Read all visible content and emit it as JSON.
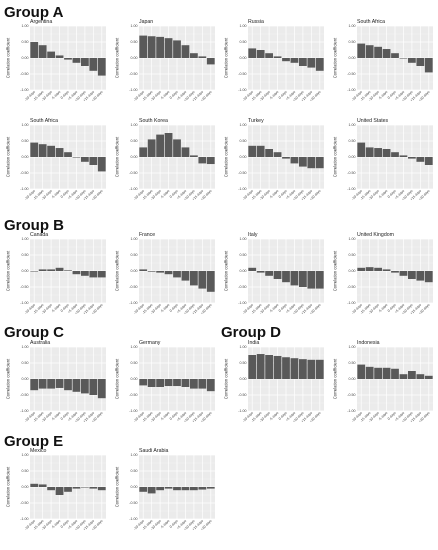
{
  "figure": {
    "groups": [
      {
        "label": "Group A"
      },
      {
        "label": "Group B"
      },
      {
        "label": "Group C"
      },
      {
        "label": "Group D"
      },
      {
        "label": "Group E"
      }
    ]
  },
  "chart_data": [
    {
      "type": "bar",
      "group": "Group A",
      "title": "Argentina",
      "ylabel": "Correlation coefficient",
      "ylim": [
        -1,
        1
      ],
      "categories": [
        "-20 days",
        "-15 days",
        "-10 days",
        "-5 days",
        "0 days",
        "+5 days",
        "+10 days",
        "+15 days",
        "+20 days"
      ],
      "values": [
        0.5,
        0.4,
        0.2,
        0.08,
        -0.05,
        -0.15,
        -0.25,
        -0.4,
        -0.55
      ]
    },
    {
      "type": "bar",
      "group": "Group A",
      "title": "Japan",
      "ylabel": "Correlation coefficient",
      "ylim": [
        -1,
        1
      ],
      "categories": [
        "-20 days",
        "-15 days",
        "-10 days",
        "-5 days",
        "0 days",
        "+5 days",
        "+10 days",
        "+15 days",
        "+20 days"
      ],
      "values": [
        0.7,
        0.68,
        0.66,
        0.62,
        0.55,
        0.4,
        0.15,
        0.05,
        -0.2
      ]
    },
    {
      "type": "bar",
      "group": "Group A",
      "title": "Russia",
      "ylabel": "Correlation coefficient",
      "ylim": [
        -1,
        1
      ],
      "categories": [
        "-20 days",
        "-15 days",
        "-10 days",
        "-5 days",
        "0 days",
        "+5 days",
        "+10 days",
        "+15 days",
        "+20 days"
      ],
      "values": [
        0.3,
        0.25,
        0.15,
        0.05,
        -0.1,
        -0.15,
        -0.25,
        -0.3,
        -0.4
      ]
    },
    {
      "type": "bar",
      "group": "Group A",
      "title": "South Africa",
      "ylabel": "Correlation coefficient",
      "ylim": [
        -1,
        1
      ],
      "categories": [
        "-20 days",
        "-15 days",
        "-10 days",
        "-5 days",
        "0 days",
        "+5 days",
        "+10 days",
        "+15 days",
        "+20 days"
      ],
      "values": [
        0.45,
        0.4,
        0.35,
        0.28,
        0.15,
        0.0,
        -0.15,
        -0.25,
        -0.45
      ]
    },
    {
      "type": "bar",
      "group": "Group A",
      "title": "South Africa",
      "ylabel": "Correlation coefficient",
      "ylim": [
        -1,
        1
      ],
      "categories": [
        "-20 days",
        "-15 days",
        "-10 days",
        "-5 days",
        "0 days",
        "+5 days",
        "+10 days",
        "+15 days",
        "+20 days"
      ],
      "values": [
        0.45,
        0.4,
        0.35,
        0.28,
        0.15,
        0.0,
        -0.15,
        -0.25,
        -0.45
      ]
    },
    {
      "type": "bar",
      "group": "Group A",
      "title": "South Korea",
      "ylabel": "Correlation coefficient",
      "ylim": [
        -1,
        1
      ],
      "categories": [
        "-20 days",
        "-15 days",
        "-10 days",
        "-5 days",
        "0 days",
        "+5 days",
        "+10 days",
        "+15 days",
        "+20 days"
      ],
      "values": [
        0.3,
        0.55,
        0.7,
        0.75,
        0.55,
        0.3,
        0.05,
        -0.2,
        -0.22
      ]
    },
    {
      "type": "bar",
      "group": "Group A",
      "title": "Turkey",
      "ylabel": "Correlation coefficient",
      "ylim": [
        -1,
        1
      ],
      "categories": [
        "-20 days",
        "-15 days",
        "-10 days",
        "-5 days",
        "0 days",
        "+5 days",
        "+10 days",
        "+15 days",
        "+20 days"
      ],
      "values": [
        0.35,
        0.35,
        0.25,
        0.15,
        -0.05,
        -0.2,
        -0.3,
        -0.35,
        -0.35
      ]
    },
    {
      "type": "bar",
      "group": "Group A",
      "title": "United States",
      "ylabel": "Correlation coefficient",
      "ylim": [
        -1,
        1
      ],
      "categories": [
        "-20 days",
        "-15 days",
        "-10 days",
        "-5 days",
        "0 days",
        "+5 days",
        "+10 days",
        "+15 days",
        "+20 days"
      ],
      "values": [
        0.45,
        0.3,
        0.28,
        0.25,
        0.15,
        0.05,
        -0.05,
        -0.15,
        -0.25
      ]
    },
    {
      "type": "bar",
      "group": "Group B",
      "title": "Canada",
      "ylabel": "Correlation coefficient",
      "ylim": [
        -1,
        1
      ],
      "categories": [
        "-20 days",
        "-15 days",
        "-10 days",
        "-5 days",
        "0 days",
        "+5 days",
        "+10 days",
        "+15 days",
        "+20 days"
      ],
      "values": [
        0.0,
        0.05,
        0.05,
        0.1,
        0.02,
        -0.1,
        -0.15,
        -0.2,
        -0.2
      ]
    },
    {
      "type": "bar",
      "group": "Group B",
      "title": "France",
      "ylabel": "Correlation coefficient",
      "ylim": [
        -1,
        1
      ],
      "categories": [
        "-20 days",
        "-15 days",
        "-10 days",
        "-5 days",
        "0 days",
        "+5 days",
        "+10 days",
        "+15 days",
        "+20 days"
      ],
      "values": [
        0.05,
        -0.02,
        -0.05,
        -0.1,
        -0.2,
        -0.3,
        -0.45,
        -0.55,
        -0.65
      ]
    },
    {
      "type": "bar",
      "group": "Group B",
      "title": "Italy",
      "ylabel": "Correlation coefficient",
      "ylim": [
        -1,
        1
      ],
      "categories": [
        "-20 days",
        "-15 days",
        "-10 days",
        "-5 days",
        "0 days",
        "+5 days",
        "+10 days",
        "+15 days",
        "+20 days"
      ],
      "values": [
        0.1,
        -0.05,
        -0.15,
        -0.25,
        -0.35,
        -0.45,
        -0.5,
        -0.55,
        -0.55
      ]
    },
    {
      "type": "bar",
      "group": "Group B",
      "title": "United Kingdom",
      "ylabel": "Correlation coefficient",
      "ylim": [
        -1,
        1
      ],
      "categories": [
        "-20 days",
        "-15 days",
        "-10 days",
        "-5 days",
        "0 days",
        "+5 days",
        "+10 days",
        "+15 days",
        "+20 days"
      ],
      "values": [
        0.1,
        0.12,
        0.1,
        0.05,
        -0.05,
        -0.15,
        -0.25,
        -0.3,
        -0.35
      ]
    },
    {
      "type": "bar",
      "group": "Group C",
      "title": "Australia",
      "ylabel": "Correlation coefficient",
      "ylim": [
        -1,
        1
      ],
      "categories": [
        "-20 days",
        "-15 days",
        "-10 days",
        "-5 days",
        "0 days",
        "+5 days",
        "+10 days",
        "+15 days",
        "+20 days"
      ],
      "values": [
        -0.35,
        -0.3,
        -0.3,
        -0.28,
        -0.35,
        -0.4,
        -0.45,
        -0.5,
        -0.6
      ]
    },
    {
      "type": "bar",
      "group": "Group C",
      "title": "Germany",
      "ylabel": "Correlation coefficient",
      "ylim": [
        -1,
        1
      ],
      "categories": [
        "-20 days",
        "-15 days",
        "-10 days",
        "-5 days",
        "0 days",
        "+5 days",
        "+10 days",
        "+15 days",
        "+20 days"
      ],
      "values": [
        -0.2,
        -0.25,
        -0.25,
        -0.22,
        -0.22,
        -0.25,
        -0.3,
        -0.3,
        -0.38
      ]
    },
    {
      "type": "bar",
      "group": "Group D",
      "title": "India",
      "ylabel": "Correlation coefficient",
      "ylim": [
        -1,
        1
      ],
      "categories": [
        "-20 days",
        "-15 days",
        "-10 days",
        "-5 days",
        "0 days",
        "+5 days",
        "+10 days",
        "+15 days",
        "+20 days"
      ],
      "values": [
        0.75,
        0.78,
        0.75,
        0.72,
        0.68,
        0.65,
        0.62,
        0.6,
        0.6
      ]
    },
    {
      "type": "bar",
      "group": "Group D",
      "title": "Indonesia",
      "ylabel": "Correlation coefficient",
      "ylim": [
        -1,
        1
      ],
      "categories": [
        "-20 days",
        "-15 days",
        "-10 days",
        "-5 days",
        "0 days",
        "+5 days",
        "+10 days",
        "+15 days",
        "+20 days"
      ],
      "values": [
        0.45,
        0.38,
        0.35,
        0.35,
        0.32,
        0.15,
        0.25,
        0.15,
        0.1
      ]
    },
    {
      "type": "bar",
      "group": "Group E",
      "title": "Mexico",
      "ylabel": "Correlation coefficient",
      "ylim": [
        -1,
        1
      ],
      "categories": [
        "-20 days",
        "-15 days",
        "-10 days",
        "-5 days",
        "0 days",
        "+5 days",
        "+10 days",
        "+15 days",
        "+20 days"
      ],
      "values": [
        0.1,
        0.08,
        -0.1,
        -0.25,
        -0.15,
        -0.05,
        0.0,
        -0.05,
        -0.1
      ]
    },
    {
      "type": "bar",
      "group": "Group E",
      "title": "Saudi Arabia",
      "ylabel": "Correlation coefficient",
      "ylim": [
        -1,
        1
      ],
      "categories": [
        "-20 days",
        "-15 days",
        "-10 days",
        "-5 days",
        "0 days",
        "+5 days",
        "+10 days",
        "+15 days",
        "+20 days"
      ],
      "values": [
        -0.15,
        -0.2,
        -0.1,
        -0.05,
        -0.1,
        -0.1,
        -0.1,
        -0.08,
        -0.05
      ]
    }
  ]
}
